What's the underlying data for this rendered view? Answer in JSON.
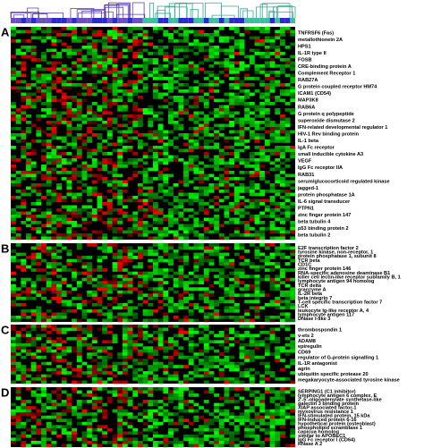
{
  "panels": [
    {
      "letter": "A",
      "genes": [
        "TNFRSF6 (Fas)",
        "metallothionein 2A",
        "HPS1",
        "IL-1R type II",
        "FOSB",
        "CRE-binding protein A",
        "Complement Receptor 1",
        "RAB27A",
        "G protein coupled receptor HM74",
        "ICAM1 (CD54)",
        "MAP3K8",
        "RAB6A",
        "G protein q polypeptide",
        "superoxide dismutase 2",
        "IFN-related developmental regulator 1",
        "HIV-1 Rev binding protein",
        "IL-1 beta",
        "IgA Fc receptor",
        "small inducible cytokine A3",
        "VEGF",
        "IgG Fc receptor IIA",
        "RAB31",
        "serum/glucocorticoid regulated kinase",
        "jagged-1",
        "protein phosphatase 1A",
        "IL-6 signal transducer",
        "PTPN1",
        "zinc finger protein 147",
        "beta tubulin 4",
        "p53 binding protein 2",
        "beta tubulin 2"
      ]
    },
    {
      "letter": "B",
      "genes": [
        "E2F transcription factor 2",
        "tyrosine kinase, non-receptor, 1",
        "protein phosphatase 1, subunit 8",
        "TCR beta",
        "CD1C",
        "zinc finger protein 146",
        "RNA-specific adenosine deaminase B1",
        "killer cell lectin-like receptor subfamily B, 1",
        "lymphocyte antigen 94 homolog",
        "TCR delta",
        "granzyme A",
        "IL-2R beta",
        "beta integrin 7",
        "T-cell specific transcription factor 7",
        "LCK",
        "leukocyte Ig-like receptor A, 4",
        "lymphocyte antigen 117",
        "DNase I-like 3"
      ]
    },
    {
      "letter": "C",
      "genes": [
        "thrombospondin 1",
        "v-ets 2",
        "ADAM8",
        "epiregulin",
        "CD69",
        "regulator of G-protein signalling 1",
        "IL-1R antagonist",
        "agrin",
        "ubiquitin specific protease 20",
        "megakaryocyte-associated tyrosine kinase"
      ]
    },
    {
      "letter": "D",
      "genes": [
        "SERPING1 (C1 inhibitor)",
        "lymphocyte antigen 6 complex, E",
        "2'-5'-oligoadenylate synthetase-like",
        "galectin 3 binding protein",
        "XIAP associated factor-1",
        "myxovirus resistance 1",
        "IFN-stimulated protein, 15 kDa",
        "IFN-induced protein 6-16",
        "hypothetical protein (osteoblast)",
        "phospholipid scramblase 1",
        "capicua homolog",
        "similar to APOBEC1",
        "IgG Fc receptor I (CD64)",
        "RNase A 2"
      ]
    }
  ]
}
